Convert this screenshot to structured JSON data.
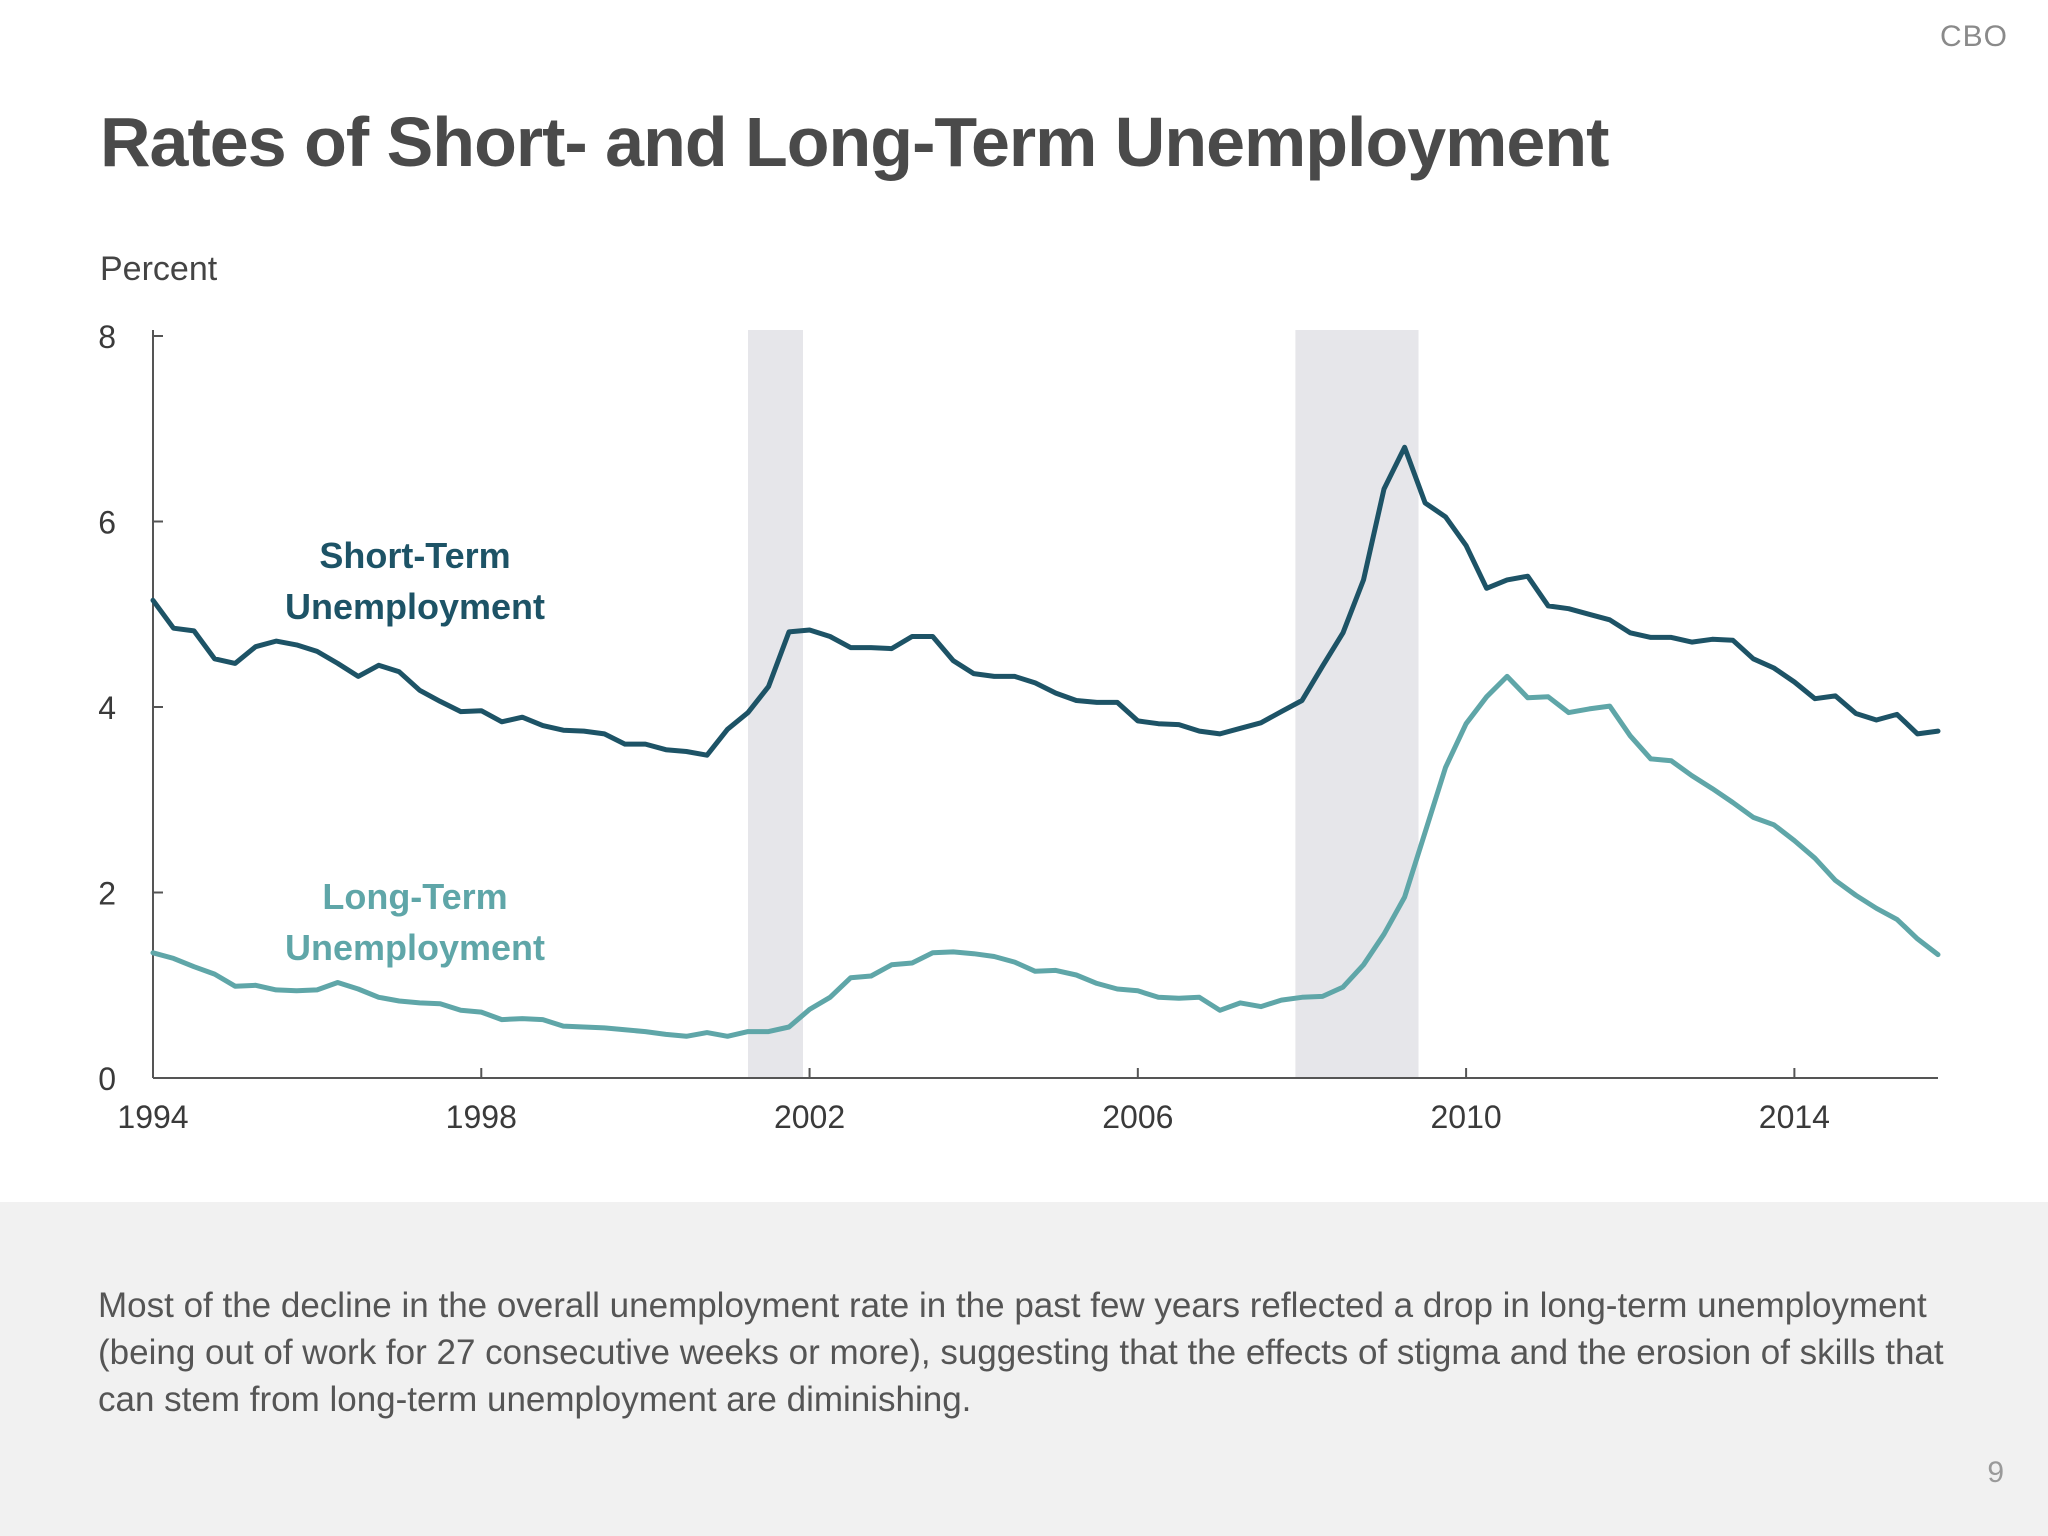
{
  "brand": "CBO",
  "title": "Rates of Short- and Long-Term Unemployment",
  "note": "Most of the decline in the overall unemployment rate in the past few years reflected a drop in long-term unemployment (being out of work for 27 consecutive weeks or more), suggesting that the effects of stigma and the erosion of skills that can stem from long-term unemployment are diminishing.",
  "page_number": "9",
  "colors": {
    "short_term": "#1d5366",
    "long_term": "#5fa6a8",
    "recession": "#e6e6ea",
    "axis": "#555555",
    "title": "#4a4a4a"
  },
  "chart_data": {
    "type": "line",
    "ylabel": "Percent",
    "xlim": [
      1994,
      2015.75
    ],
    "ylim": [
      0,
      8
    ],
    "x_ticks": [
      1994,
      1998,
      2002,
      2006,
      2010,
      2014
    ],
    "y_ticks": [
      0,
      2,
      4,
      6,
      8
    ],
    "grid": false,
    "recessions": [
      {
        "start": 2001.25,
        "end": 2001.92
      },
      {
        "start": 2007.92,
        "end": 2009.42
      }
    ],
    "series": [
      {
        "name": "Short-Term Unemployment",
        "label_lines": [
          "Short-Term",
          "Unemployment"
        ],
        "color": "#1d5366",
        "points": [
          [
            1994.0,
            5.15
          ],
          [
            1994.25,
            4.85
          ],
          [
            1994.5,
            4.82
          ],
          [
            1994.75,
            4.52
          ],
          [
            1995.0,
            4.47
          ],
          [
            1995.25,
            4.65
          ],
          [
            1995.5,
            4.71
          ],
          [
            1995.75,
            4.67
          ],
          [
            1996.0,
            4.6
          ],
          [
            1996.25,
            4.47
          ],
          [
            1996.5,
            4.33
          ],
          [
            1996.75,
            4.45
          ],
          [
            1997.0,
            4.38
          ],
          [
            1997.25,
            4.18
          ],
          [
            1997.5,
            4.06
          ],
          [
            1997.75,
            3.95
          ],
          [
            1998.0,
            3.96
          ],
          [
            1998.25,
            3.84
          ],
          [
            1998.5,
            3.89
          ],
          [
            1998.75,
            3.8
          ],
          [
            1999.0,
            3.75
          ],
          [
            1999.25,
            3.74
          ],
          [
            1999.5,
            3.71
          ],
          [
            1999.75,
            3.6
          ],
          [
            2000.0,
            3.6
          ],
          [
            2000.25,
            3.54
          ],
          [
            2000.5,
            3.52
          ],
          [
            2000.75,
            3.48
          ],
          [
            2001.0,
            3.76
          ],
          [
            2001.25,
            3.94
          ],
          [
            2001.5,
            4.22
          ],
          [
            2001.75,
            4.81
          ],
          [
            2002.0,
            4.83
          ],
          [
            2002.25,
            4.76
          ],
          [
            2002.5,
            4.64
          ],
          [
            2002.75,
            4.64
          ],
          [
            2003.0,
            4.63
          ],
          [
            2003.25,
            4.76
          ],
          [
            2003.5,
            4.76
          ],
          [
            2003.75,
            4.5
          ],
          [
            2004.0,
            4.36
          ],
          [
            2004.25,
            4.33
          ],
          [
            2004.5,
            4.33
          ],
          [
            2004.75,
            4.26
          ],
          [
            2005.0,
            4.15
          ],
          [
            2005.25,
            4.07
          ],
          [
            2005.5,
            4.05
          ],
          [
            2005.75,
            4.05
          ],
          [
            2006.0,
            3.85
          ],
          [
            2006.25,
            3.82
          ],
          [
            2006.5,
            3.81
          ],
          [
            2006.75,
            3.74
          ],
          [
            2007.0,
            3.71
          ],
          [
            2007.25,
            3.77
          ],
          [
            2007.5,
            3.83
          ],
          [
            2007.75,
            3.95
          ],
          [
            2008.0,
            4.07
          ],
          [
            2008.25,
            4.44
          ],
          [
            2008.5,
            4.8
          ],
          [
            2008.75,
            5.37
          ],
          [
            2009.0,
            6.35
          ],
          [
            2009.25,
            6.8
          ],
          [
            2009.5,
            6.2
          ],
          [
            2009.75,
            6.05
          ],
          [
            2010.0,
            5.74
          ],
          [
            2010.25,
            5.28
          ],
          [
            2010.5,
            5.37
          ],
          [
            2010.75,
            5.41
          ],
          [
            2011.0,
            5.09
          ],
          [
            2011.25,
            5.06
          ],
          [
            2011.5,
            5.0
          ],
          [
            2011.75,
            4.94
          ],
          [
            2012.0,
            4.8
          ],
          [
            2012.25,
            4.75
          ],
          [
            2012.5,
            4.75
          ],
          [
            2012.75,
            4.7
          ],
          [
            2013.0,
            4.73
          ],
          [
            2013.25,
            4.72
          ],
          [
            2013.5,
            4.52
          ],
          [
            2013.75,
            4.42
          ],
          [
            2014.0,
            4.27
          ],
          [
            2014.25,
            4.09
          ],
          [
            2014.5,
            4.12
          ],
          [
            2014.75,
            3.93
          ],
          [
            2015.0,
            3.86
          ],
          [
            2015.25,
            3.92
          ],
          [
            2015.5,
            3.71
          ],
          [
            2015.75,
            3.74
          ]
        ]
      },
      {
        "name": "Long-Term Unemployment",
        "label_lines": [
          "Long-Term",
          "Unemployment"
        ],
        "color": "#5fa6a8",
        "points": [
          [
            1994.0,
            1.35
          ],
          [
            1994.25,
            1.29
          ],
          [
            1994.5,
            1.2
          ],
          [
            1994.75,
            1.12
          ],
          [
            1995.0,
            0.99
          ],
          [
            1995.25,
            1.0
          ],
          [
            1995.5,
            0.95
          ],
          [
            1995.75,
            0.94
          ],
          [
            1996.0,
            0.95
          ],
          [
            1996.25,
            1.03
          ],
          [
            1996.5,
            0.96
          ],
          [
            1996.75,
            0.87
          ],
          [
            1997.0,
            0.83
          ],
          [
            1997.25,
            0.81
          ],
          [
            1997.5,
            0.8
          ],
          [
            1997.75,
            0.73
          ],
          [
            1998.0,
            0.71
          ],
          [
            1998.25,
            0.63
          ],
          [
            1998.5,
            0.64
          ],
          [
            1998.75,
            0.63
          ],
          [
            1999.0,
            0.56
          ],
          [
            1999.25,
            0.55
          ],
          [
            1999.5,
            0.54
          ],
          [
            1999.75,
            0.52
          ],
          [
            2000.0,
            0.5
          ],
          [
            2000.25,
            0.47
          ],
          [
            2000.5,
            0.45
          ],
          [
            2000.75,
            0.49
          ],
          [
            2001.0,
            0.45
          ],
          [
            2001.25,
            0.5
          ],
          [
            2001.5,
            0.5
          ],
          [
            2001.75,
            0.55
          ],
          [
            2002.0,
            0.74
          ],
          [
            2002.25,
            0.87
          ],
          [
            2002.5,
            1.08
          ],
          [
            2002.75,
            1.1
          ],
          [
            2003.0,
            1.22
          ],
          [
            2003.25,
            1.24
          ],
          [
            2003.5,
            1.35
          ],
          [
            2003.75,
            1.36
          ],
          [
            2004.0,
            1.34
          ],
          [
            2004.25,
            1.31
          ],
          [
            2004.5,
            1.25
          ],
          [
            2004.75,
            1.15
          ],
          [
            2005.0,
            1.16
          ],
          [
            2005.25,
            1.11
          ],
          [
            2005.5,
            1.02
          ],
          [
            2005.75,
            0.96
          ],
          [
            2006.0,
            0.94
          ],
          [
            2006.25,
            0.87
          ],
          [
            2006.5,
            0.86
          ],
          [
            2006.75,
            0.87
          ],
          [
            2007.0,
            0.73
          ],
          [
            2007.25,
            0.81
          ],
          [
            2007.5,
            0.77
          ],
          [
            2007.75,
            0.84
          ],
          [
            2008.0,
            0.87
          ],
          [
            2008.25,
            0.88
          ],
          [
            2008.5,
            0.98
          ],
          [
            2008.75,
            1.22
          ],
          [
            2009.0,
            1.55
          ],
          [
            2009.25,
            1.95
          ],
          [
            2009.5,
            2.65
          ],
          [
            2009.75,
            3.35
          ],
          [
            2010.0,
            3.82
          ],
          [
            2010.25,
            4.11
          ],
          [
            2010.5,
            4.33
          ],
          [
            2010.75,
            4.1
          ],
          [
            2011.0,
            4.11
          ],
          [
            2011.25,
            3.94
          ],
          [
            2011.5,
            3.98
          ],
          [
            2011.75,
            4.01
          ],
          [
            2012.0,
            3.69
          ],
          [
            2012.25,
            3.44
          ],
          [
            2012.5,
            3.42
          ],
          [
            2012.75,
            3.26
          ],
          [
            2013.0,
            3.12
          ],
          [
            2013.25,
            2.97
          ],
          [
            2013.5,
            2.81
          ],
          [
            2013.75,
            2.73
          ],
          [
            2014.0,
            2.56
          ],
          [
            2014.25,
            2.37
          ],
          [
            2014.5,
            2.13
          ],
          [
            2014.75,
            1.97
          ],
          [
            2015.0,
            1.83
          ],
          [
            2015.25,
            1.71
          ],
          [
            2015.5,
            1.5
          ],
          [
            2015.75,
            1.33
          ]
        ]
      }
    ]
  }
}
